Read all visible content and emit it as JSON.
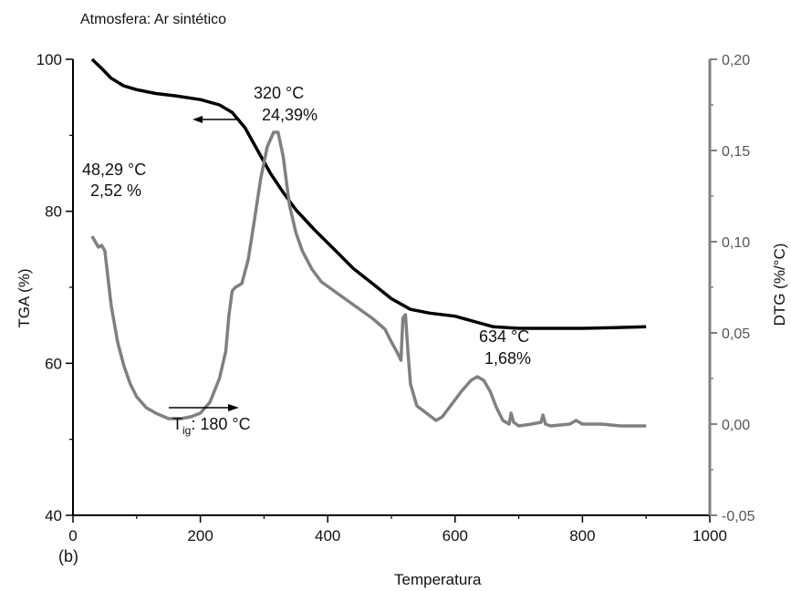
{
  "header": "Atmosfera: Ar sintético",
  "panel_label": "(b)",
  "chart_data": {
    "type": "line",
    "xlabel": "Temperatura",
    "ylabel": "TGA (%)",
    "y2label": "DTG (%/°C)",
    "xlim": [
      0,
      1000
    ],
    "ylim": [
      40,
      100
    ],
    "y2lim": [
      -0.05,
      0.2
    ],
    "x_ticks": [
      {
        "v": 0,
        "l": "0"
      },
      {
        "v": 200,
        "l": "200"
      },
      {
        "v": 400,
        "l": "400"
      },
      {
        "v": 600,
        "l": "600"
      },
      {
        "v": 800,
        "l": "800"
      },
      {
        "v": 1000,
        "l": "1000"
      }
    ],
    "y_ticks": [
      {
        "v": 40,
        "l": "40"
      },
      {
        "v": 60,
        "l": "60"
      },
      {
        "v": 80,
        "l": "80"
      },
      {
        "v": 100,
        "l": "100"
      }
    ],
    "y2_ticks": [
      {
        "v": -0.05,
        "l": "-0,05"
      },
      {
        "v": 0,
        "l": "0,00"
      },
      {
        "v": 0.05,
        "l": "0,05"
      },
      {
        "v": 0.1,
        "l": "0,10"
      },
      {
        "v": 0.15,
        "l": "0,15"
      },
      {
        "v": 0.2,
        "l": "0,20"
      }
    ],
    "series": [
      {
        "axis": "left",
        "color": "#000000",
        "x": [
          30,
          45,
          60,
          80,
          100,
          130,
          160,
          200,
          230,
          250,
          270,
          290,
          310,
          330,
          350,
          380,
          410,
          440,
          470,
          500,
          530,
          560,
          600,
          630,
          660,
          700,
          750,
          800,
          850,
          900
        ],
        "y": [
          100,
          98.8,
          97.5,
          96.5,
          96.0,
          95.5,
          95.2,
          94.7,
          94.0,
          93.0,
          91.0,
          88.0,
          85.0,
          82.5,
          80.2,
          77.5,
          75.0,
          72.5,
          70.5,
          68.5,
          67.1,
          66.6,
          66.2,
          65.5,
          64.8,
          64.6,
          64.6,
          64.6,
          64.7,
          64.8
        ]
      },
      {
        "axis": "right",
        "color": "#808080",
        "x": [
          30,
          35,
          40,
          45,
          50,
          55,
          60,
          70,
          80,
          90,
          100,
          115,
          130,
          150,
          170,
          185,
          200,
          215,
          230,
          240,
          245,
          250,
          255,
          265,
          275,
          285,
          295,
          305,
          315,
          322,
          330,
          340,
          350,
          360,
          375,
          390,
          410,
          430,
          450,
          470,
          490,
          500,
          508,
          515,
          518,
          522,
          526,
          530,
          540,
          555,
          570,
          580,
          595,
          610,
          625,
          635,
          645,
          655,
          665,
          675,
          685,
          688,
          692,
          700,
          720,
          735,
          738,
          742,
          750,
          780,
          790,
          800,
          830,
          860,
          900
        ],
        "y": [
          0.103,
          0.1,
          0.097,
          0.098,
          0.095,
          0.08,
          0.065,
          0.045,
          0.032,
          0.022,
          0.015,
          0.009,
          0.006,
          0.003,
          0.003,
          0.004,
          0.006,
          0.012,
          0.025,
          0.04,
          0.06,
          0.073,
          0.075,
          0.077,
          0.09,
          0.112,
          0.135,
          0.152,
          0.16,
          0.16,
          0.147,
          0.12,
          0.105,
          0.095,
          0.085,
          0.078,
          0.073,
          0.068,
          0.063,
          0.058,
          0.052,
          0.045,
          0.04,
          0.035,
          0.058,
          0.06,
          0.04,
          0.022,
          0.01,
          0.006,
          0.002,
          0.004,
          0.011,
          0.018,
          0.024,
          0.026,
          0.024,
          0.018,
          0.009,
          0.002,
          0.0,
          0.006,
          0.001,
          -0.001,
          0.0,
          0.001,
          0.005,
          0.0,
          -0.001,
          0.0,
          0.002,
          0.0,
          0.0,
          -0.001,
          -0.001
        ]
      }
    ],
    "annotations": [
      {
        "lines": [
          "320 °C",
          "24,39%"
        ]
      },
      {
        "lines": [
          "48,29 °C",
          "2,52 %"
        ]
      },
      {
        "lines": [
          "634 °C",
          "1,68%"
        ]
      },
      {
        "text": ": 180 °C",
        "prefix": "T",
        "sub": "ig"
      }
    ]
  }
}
